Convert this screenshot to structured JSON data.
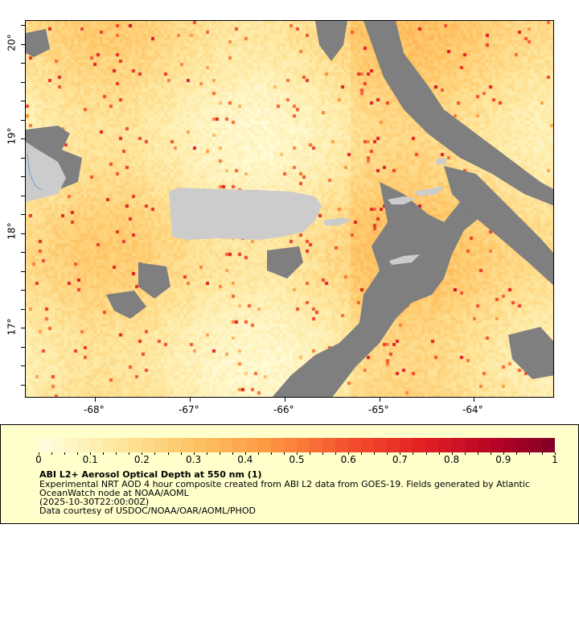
{
  "map": {
    "lon_ticks": [
      "-68°",
      "-67°",
      "-66°",
      "-65°",
      "-64°"
    ],
    "lat_ticks": [
      "20°",
      "19°",
      "18°",
      "17°"
    ],
    "lon_range": [
      -68.74,
      -63.16
    ],
    "lat_range": [
      16.36,
      20.25
    ],
    "colors": {
      "land": "#cccccc",
      "no_data": "#7f7f7f",
      "coast": "#6fa0d0"
    }
  },
  "legend": {
    "colorbar_labels": [
      "0",
      "0.1",
      "0.2",
      "0.3",
      "0.4",
      "0.5",
      "0.6",
      "0.7",
      "0.8",
      "0.9",
      "1"
    ],
    "colorbar_range": [
      0,
      1
    ],
    "colorbar_start": "#ffffe0",
    "colorbar_end": "#800026",
    "title": "ABI L2+ Aerosol Optical Depth at 550 nm (1)",
    "line1": "Experimental NRT AOD 4 hour composite created from ABI L2 data from GOES-19. Fields generated by Atlantic",
    "line2": "OceanWatch node at NOAA/AOML",
    "line3": "(2025-10-30T22:00:00Z)",
    "line4": "Data courtesy of USDOC/NOAA/OAR/AOML/PHOD"
  }
}
